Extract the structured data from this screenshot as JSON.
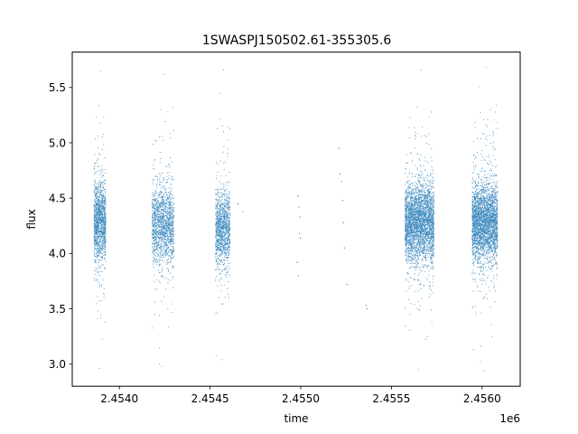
{
  "chart_data": {
    "type": "scatter",
    "title": "1SWASPJ150502.61-355305.6",
    "xlabel": "time",
    "ylabel": "flux",
    "x_offset_label": "1e6",
    "xlim": [
      2453740,
      2456210
    ],
    "ylim": [
      2.8,
      5.82
    ],
    "x_ticks": [
      {
        "value": 2454000,
        "label": "2.4540"
      },
      {
        "value": 2454500,
        "label": "2.4545"
      },
      {
        "value": 2455000,
        "label": "2.4550"
      },
      {
        "value": 2455500,
        "label": "2.4555"
      },
      {
        "value": 2456000,
        "label": "2.4560"
      }
    ],
    "y_ticks": [
      {
        "value": 3.0,
        "label": "3.0"
      },
      {
        "value": 3.5,
        "label": "3.5"
      },
      {
        "value": 4.0,
        "label": "4.0"
      },
      {
        "value": 4.5,
        "label": "4.5"
      },
      {
        "value": 5.0,
        "label": "5.0"
      },
      {
        "value": 5.5,
        "label": "5.5"
      }
    ],
    "grid": false,
    "marker_color": "#1f77b4",
    "observing_seasons": [
      {
        "x_start": 2453860,
        "x_end": 2453925,
        "median_flux": 4.28,
        "flux_min": 2.96,
        "flux_max": 5.65
      },
      {
        "x_start": 2454180,
        "x_end": 2454300,
        "median_flux": 4.26,
        "flux_min": 2.98,
        "flux_max": 5.62
      },
      {
        "x_start": 2454530,
        "x_end": 2454610,
        "median_flux": 4.22,
        "flux_min": 3.04,
        "flux_max": 5.66
      },
      {
        "x_start": 2455575,
        "x_end": 2455735,
        "median_flux": 4.28,
        "flux_min": 2.95,
        "flux_max": 5.66
      },
      {
        "x_start": 2455945,
        "x_end": 2456085,
        "median_flux": 4.28,
        "flux_min": 2.94,
        "flux_max": 5.68
      }
    ],
    "sparse_points": [
      {
        "x": 2454655,
        "y": 4.45
      },
      {
        "x": 2454680,
        "y": 4.38
      },
      {
        "x": 2454985,
        "y": 4.52
      },
      {
        "x": 2454990,
        "y": 4.42
      },
      {
        "x": 2454995,
        "y": 4.33
      },
      {
        "x": 2454992,
        "y": 4.18
      },
      {
        "x": 2454997,
        "y": 4.14
      },
      {
        "x": 2454980,
        "y": 3.92
      },
      {
        "x": 2454987,
        "y": 3.8
      },
      {
        "x": 2455210,
        "y": 4.95
      },
      {
        "x": 2455215,
        "y": 4.72
      },
      {
        "x": 2455225,
        "y": 4.65
      },
      {
        "x": 2455230,
        "y": 4.48
      },
      {
        "x": 2455235,
        "y": 4.28
      },
      {
        "x": 2455240,
        "y": 4.05
      },
      {
        "x": 2455255,
        "y": 3.72
      },
      {
        "x": 2455360,
        "y": 3.53
      },
      {
        "x": 2455365,
        "y": 3.5
      }
    ]
  }
}
